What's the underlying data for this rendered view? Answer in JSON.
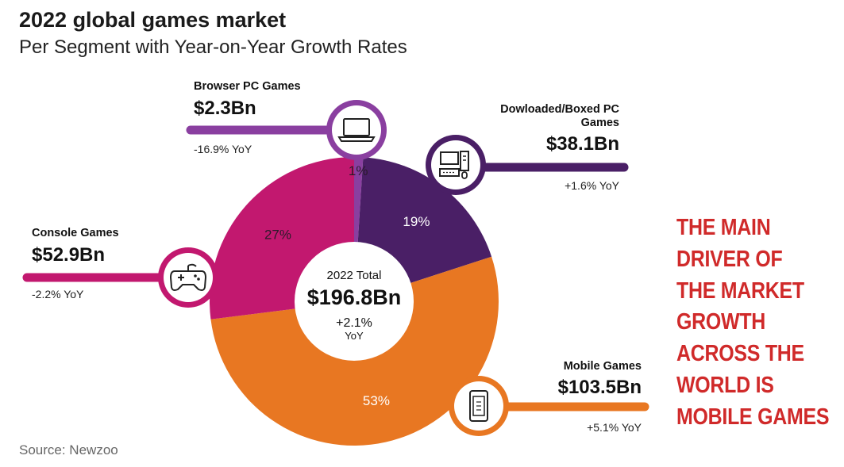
{
  "header": {
    "title": "2022 global games market",
    "subtitle": "Per Segment with Year-on-Year Growth Rates"
  },
  "source": "Source: Newzoo",
  "callout": {
    "lines": [
      "THE MAIN",
      "DRIVER OF",
      "THE MARKET",
      "GROWTH",
      "ACROSS THE",
      "WORLD IS",
      "MOBILE GAMES"
    ]
  },
  "center": {
    "label": "2022 Total",
    "value": "$196.8Bn",
    "growth": "+2.1%",
    "yoy": "YoY"
  },
  "chart_data": {
    "type": "pie",
    "title": "2022 global games market",
    "subtitle": "Per Segment with Year-on-Year Growth Rates",
    "total": "$196.8Bn",
    "total_growth": "+2.1% YoY",
    "slices": [
      {
        "name": "Browser PC Games",
        "percent": 1,
        "percent_label": "1%",
        "value_label": "$2.3Bn",
        "value_bn": 2.3,
        "yoy": "-16.9% YoY",
        "color": "#8a3fa0"
      },
      {
        "name": "Dowloaded/Boxed PC Games",
        "percent": 19,
        "percent_label": "19%",
        "value_label": "$38.1Bn",
        "value_bn": 38.1,
        "yoy": "+1.6% YoY",
        "color": "#4a1f66"
      },
      {
        "name": "Mobile Games",
        "percent": 53,
        "percent_label": "53%",
        "value_label": "$103.5Bn",
        "value_bn": 103.5,
        "yoy": "+5.1% YoY",
        "color": "#e87722"
      },
      {
        "name": "Console Games",
        "percent": 27,
        "percent_label": "27%",
        "value_label": "$52.9Bn",
        "value_bn": 52.9,
        "yoy": "-2.2% YoY",
        "color": "#c2186f"
      }
    ]
  },
  "icons": {
    "browser": "laptop-icon",
    "downloaded": "desktop-computer-icon",
    "mobile": "smartphone-icon",
    "console": "gamepad-icon"
  }
}
